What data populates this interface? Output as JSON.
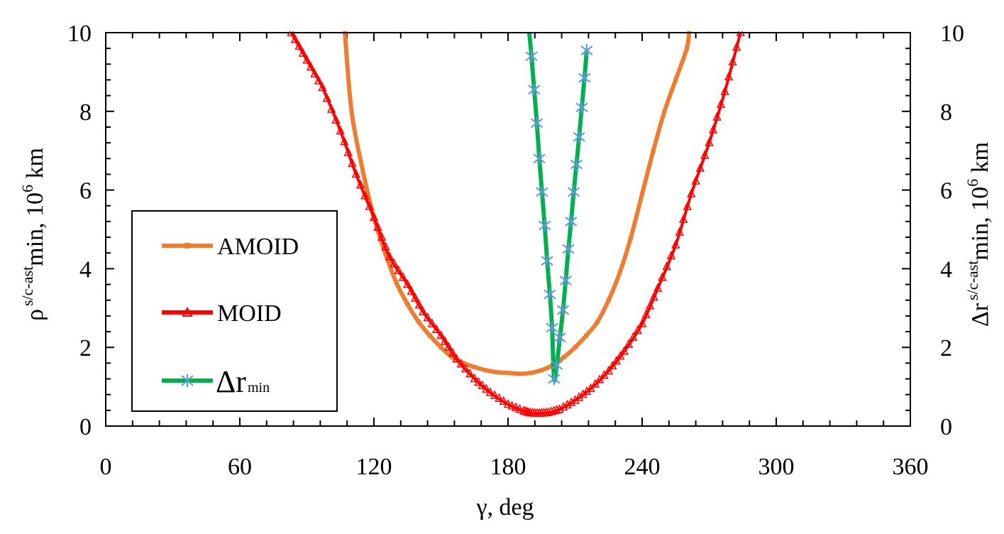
{
  "chart_data": {
    "type": "line",
    "title": "",
    "xlabel": "γ, deg",
    "ylabel_left": {
      "base": "ρ",
      "sup": "s/c-ast",
      "rest": "min, 10",
      "unit_sup": "6",
      "unit": " km"
    },
    "ylabel_right": {
      "base": "Δr",
      "sup": "s/c-ast",
      "rest": "min, 10",
      "unit_sup": "6",
      "unit": " km"
    },
    "xlim": [
      0,
      360
    ],
    "ylim": [
      0,
      10
    ],
    "x_ticks": [
      0,
      60,
      120,
      180,
      240,
      300,
      360
    ],
    "x_tick_labels": [
      "0",
      "60",
      "120",
      "180",
      "240",
      "300",
      "360"
    ],
    "y_ticks": [
      0,
      2,
      4,
      6,
      8,
      10
    ],
    "y_tick_labels": [
      "0",
      "2",
      "4",
      "6",
      "8",
      "10"
    ],
    "legend": {
      "placement": "middle-left",
      "entries": [
        "AMOID",
        "MOID",
        "Δr"
      ],
      "delta_sub": "min"
    },
    "series": [
      {
        "name": "AMOID",
        "color": "#ED7D31",
        "marker": "dash",
        "x": [
          107,
          110,
          115,
          120,
          125,
          130,
          135,
          140,
          145,
          150,
          155,
          160,
          165,
          170,
          175,
          180,
          185,
          190,
          195,
          200,
          205,
          210,
          215,
          220,
          225,
          230,
          235,
          240,
          245,
          250,
          255,
          260,
          261
        ],
        "y": [
          10.0,
          8.0,
          6.5,
          5.3,
          4.4,
          3.65,
          3.1,
          2.65,
          2.3,
          2.0,
          1.75,
          1.6,
          1.5,
          1.42,
          1.37,
          1.35,
          1.33,
          1.35,
          1.42,
          1.55,
          1.75,
          2.0,
          2.3,
          2.65,
          3.2,
          3.9,
          4.8,
          5.9,
          7.0,
          8.0,
          8.8,
          9.6,
          10.0
        ]
      },
      {
        "name": "MOID",
        "color": "#FF0000",
        "marker": "triangle",
        "x": [
          83,
          90,
          97,
          105,
          112,
          120,
          127,
          135,
          142,
          150,
          157,
          165,
          172,
          180,
          187,
          190,
          194,
          198,
          203,
          210,
          217,
          225,
          232,
          240,
          247,
          255,
          262,
          270,
          277,
          284
        ],
        "y": [
          10.0,
          9.3,
          8.6,
          7.5,
          6.4,
          5.3,
          4.3,
          3.6,
          2.9,
          2.3,
          1.7,
          1.2,
          0.85,
          0.55,
          0.38,
          0.33,
          0.32,
          0.34,
          0.42,
          0.65,
          0.95,
          1.4,
          1.9,
          2.6,
          3.5,
          4.6,
          5.9,
          7.2,
          8.5,
          10.0
        ]
      },
      {
        "name": "Δr min",
        "color": "#00B050",
        "marker": "asterisk",
        "marker_color": "#5B9BD5",
        "x": [
          189.5,
          190.5,
          191.7,
          192.9,
          194.0,
          195.2,
          196.4,
          197.5,
          198.7,
          199.7,
          200.6,
          201.8,
          203.2,
          204.6,
          205.8,
          207.0,
          208.2,
          209.4,
          210.6,
          211.8,
          213.0,
          214.2,
          215.2
        ],
        "y": [
          10.0,
          9.4,
          8.55,
          7.7,
          6.8,
          5.95,
          5.1,
          4.2,
          3.35,
          2.5,
          1.2,
          1.55,
          2.25,
          2.95,
          3.7,
          4.5,
          5.2,
          5.95,
          6.65,
          7.35,
          8.1,
          8.85,
          9.55
        ]
      }
    ]
  }
}
